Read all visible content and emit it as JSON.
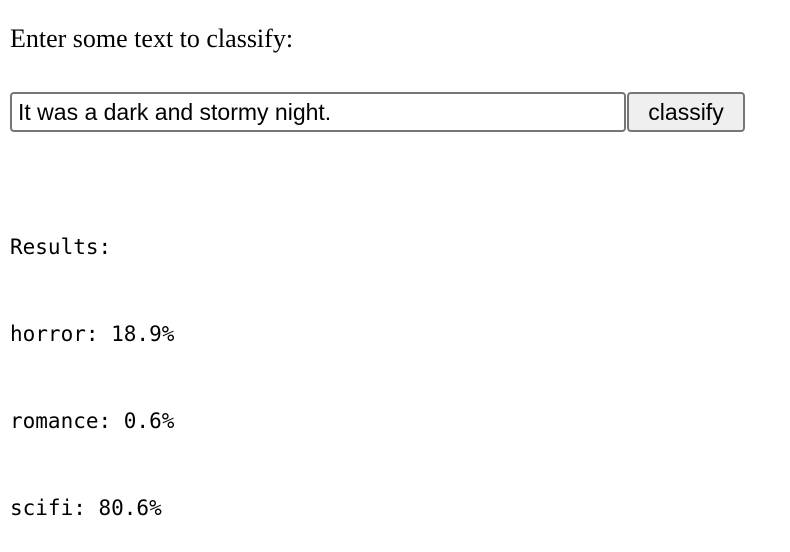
{
  "prompt": "Enter some text to classify:",
  "form": {
    "input_value": "It was a dark and stormy night.",
    "button_label": "classify"
  },
  "results": {
    "heading": "Results:",
    "lines": [
      "horror: 18.9%",
      "romance: 0.6%",
      "scifi: 80.6%"
    ]
  }
}
